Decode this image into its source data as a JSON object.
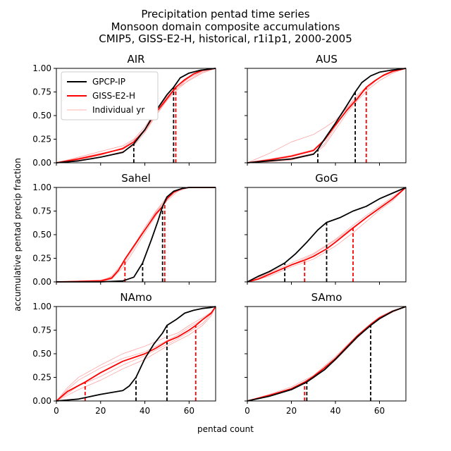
{
  "figure": {
    "title_lines": [
      "Precipitation pentad time series",
      "Monsoon domain composite accumulations",
      "CMIP5, GISS-E2-H, historical, r1i1p1, 2000-2005"
    ],
    "xlabel": "pentad count",
    "ylabel": "accumulative pentad precip fraction",
    "xticks": [
      0,
      20,
      40,
      60
    ],
    "xtick_labels": [
      "0",
      "20",
      "40",
      "60"
    ],
    "yticks": [
      0,
      0.25,
      0.5,
      0.75,
      1.0
    ],
    "ytick_labels": [
      "0.00",
      "0.25",
      "0.50",
      "0.75",
      "1.00"
    ],
    "legend": {
      "placement": "top-left of first panel",
      "entries": [
        "GPCP-IP",
        "GISS-E2-H",
        "Individual yr"
      ]
    },
    "colors": {
      "obs": "#000000",
      "model": "#ff0000",
      "individual": "#ff9999"
    }
  },
  "chart_data": [
    {
      "type": "line",
      "title": "AIR",
      "xlim": [
        0,
        72
      ],
      "ylim": [
        0,
        1
      ],
      "series": [
        {
          "name": "GPCP-IP",
          "x": [
            0,
            10,
            20,
            30,
            35,
            40,
            45,
            50,
            53,
            56,
            60,
            65,
            72
          ],
          "y": [
            0,
            0.02,
            0.06,
            0.11,
            0.2,
            0.35,
            0.55,
            0.72,
            0.8,
            0.9,
            0.95,
            0.98,
            1.0
          ]
        },
        {
          "name": "GISS-E2-H",
          "x": [
            0,
            10,
            20,
            30,
            35,
            40,
            45,
            50,
            54,
            58,
            62,
            66,
            72
          ],
          "y": [
            0,
            0.04,
            0.09,
            0.15,
            0.22,
            0.35,
            0.53,
            0.68,
            0.8,
            0.88,
            0.94,
            0.98,
            1.0
          ]
        }
      ],
      "individual": [
        {
          "x": [
            0,
            10,
            20,
            30,
            35,
            40,
            45,
            50,
            55,
            60,
            66,
            72
          ],
          "y": [
            0,
            0.06,
            0.12,
            0.18,
            0.25,
            0.38,
            0.55,
            0.7,
            0.82,
            0.9,
            0.97,
            1.0
          ]
        },
        {
          "x": [
            0,
            10,
            20,
            30,
            35,
            40,
            45,
            50,
            55,
            60,
            66,
            72
          ],
          "y": [
            0,
            0.02,
            0.06,
            0.12,
            0.18,
            0.32,
            0.5,
            0.66,
            0.78,
            0.88,
            0.96,
            1.0
          ]
        },
        {
          "x": [
            0,
            10,
            20,
            30,
            35,
            40,
            45,
            50,
            55,
            60,
            66,
            72
          ],
          "y": [
            0,
            0.05,
            0.1,
            0.14,
            0.22,
            0.36,
            0.54,
            0.7,
            0.8,
            0.9,
            0.97,
            1.0
          ]
        },
        {
          "x": [
            0,
            10,
            20,
            30,
            35,
            40,
            45,
            50,
            55,
            60,
            66,
            72
          ],
          "y": [
            0,
            0.03,
            0.08,
            0.16,
            0.24,
            0.33,
            0.5,
            0.67,
            0.8,
            0.87,
            0.95,
            1.0
          ]
        }
      ],
      "obs_vlines": [
        35,
        53
      ],
      "model_vlines": [
        54
      ]
    },
    {
      "type": "line",
      "title": "AUS",
      "xlim": [
        0,
        72
      ],
      "ylim": [
        0,
        1
      ],
      "series": [
        {
          "name": "GPCP-IP",
          "x": [
            0,
            10,
            20,
            30,
            32,
            35,
            40,
            45,
            49,
            52,
            56,
            60,
            65,
            72
          ],
          "y": [
            0,
            0.02,
            0.04,
            0.09,
            0.14,
            0.25,
            0.42,
            0.6,
            0.75,
            0.85,
            0.92,
            0.96,
            0.98,
            1.0
          ]
        },
        {
          "name": "GISS-E2-H",
          "x": [
            0,
            10,
            20,
            30,
            35,
            40,
            45,
            50,
            54,
            58,
            62,
            66,
            72
          ],
          "y": [
            0,
            0.03,
            0.07,
            0.13,
            0.24,
            0.4,
            0.55,
            0.68,
            0.8,
            0.87,
            0.93,
            0.97,
            1.0
          ]
        }
      ],
      "individual": [
        {
          "x": [
            0,
            10,
            20,
            30,
            35,
            40,
            45,
            50,
            55,
            60,
            66,
            72
          ],
          "y": [
            0,
            0.1,
            0.22,
            0.3,
            0.37,
            0.45,
            0.57,
            0.7,
            0.82,
            0.9,
            0.97,
            1.0
          ]
        },
        {
          "x": [
            0,
            10,
            20,
            30,
            35,
            40,
            45,
            50,
            55,
            60,
            66,
            72
          ],
          "y": [
            0,
            0.02,
            0.05,
            0.1,
            0.2,
            0.38,
            0.56,
            0.7,
            0.8,
            0.9,
            0.96,
            1.0
          ]
        },
        {
          "x": [
            0,
            10,
            20,
            30,
            35,
            40,
            45,
            50,
            55,
            60,
            66,
            72
          ],
          "y": [
            0,
            0.04,
            0.08,
            0.14,
            0.25,
            0.42,
            0.58,
            0.72,
            0.82,
            0.9,
            0.97,
            1.0
          ]
        },
        {
          "x": [
            0,
            10,
            20,
            30,
            35,
            40,
            45,
            50,
            55,
            60,
            66,
            72
          ],
          "y": [
            0,
            0.01,
            0.03,
            0.09,
            0.18,
            0.35,
            0.52,
            0.66,
            0.78,
            0.87,
            0.95,
            1.0
          ]
        }
      ],
      "obs_vlines": [
        32,
        49
      ],
      "model_vlines": [
        54
      ]
    },
    {
      "type": "line",
      "title": "Sahel",
      "xlim": [
        0,
        72
      ],
      "ylim": [
        0,
        1
      ],
      "series": [
        {
          "name": "GPCP-IP",
          "x": [
            0,
            20,
            30,
            35,
            39,
            43,
            46,
            48,
            50,
            53,
            57,
            60,
            72
          ],
          "y": [
            0,
            0,
            0.01,
            0.05,
            0.2,
            0.45,
            0.65,
            0.8,
            0.9,
            0.96,
            0.99,
            1.0,
            1.0
          ]
        },
        {
          "name": "GISS-E2-H",
          "x": [
            0,
            20,
            25,
            28,
            31,
            35,
            40,
            45,
            48,
            50,
            53,
            57,
            60,
            72
          ],
          "y": [
            0,
            0.01,
            0.04,
            0.12,
            0.24,
            0.38,
            0.55,
            0.72,
            0.8,
            0.88,
            0.95,
            0.99,
            1.0,
            1.0
          ]
        }
      ],
      "individual": [
        {
          "x": [
            0,
            20,
            25,
            30,
            35,
            40,
            45,
            50,
            55,
            60,
            72
          ],
          "y": [
            0,
            0.01,
            0.06,
            0.2,
            0.38,
            0.58,
            0.75,
            0.9,
            0.98,
            1.0,
            1.0
          ]
        },
        {
          "x": [
            0,
            20,
            25,
            30,
            35,
            40,
            45,
            50,
            55,
            60,
            72
          ],
          "y": [
            0,
            0.0,
            0.03,
            0.15,
            0.33,
            0.52,
            0.7,
            0.86,
            0.96,
            1.0,
            1.0
          ]
        },
        {
          "x": [
            0,
            20,
            25,
            30,
            35,
            40,
            45,
            50,
            55,
            60,
            72
          ],
          "y": [
            0,
            0.02,
            0.05,
            0.18,
            0.36,
            0.55,
            0.74,
            0.88,
            0.97,
            1.0,
            1.0
          ]
        }
      ],
      "obs_vlines": [
        39,
        48
      ],
      "model_vlines": [
        31,
        49
      ]
    },
    {
      "type": "line",
      "title": "GoG",
      "xlim": [
        0,
        72
      ],
      "ylim": [
        0,
        1
      ],
      "series": [
        {
          "name": "GPCP-IP",
          "x": [
            0,
            5,
            10,
            17,
            22,
            27,
            32,
            36,
            42,
            48,
            54,
            60,
            66,
            72
          ],
          "y": [
            0,
            0.06,
            0.11,
            0.2,
            0.3,
            0.42,
            0.55,
            0.63,
            0.68,
            0.75,
            0.8,
            0.88,
            0.94,
            1.0
          ]
        },
        {
          "name": "GISS-E2-H",
          "x": [
            0,
            5,
            10,
            15,
            20,
            26,
            30,
            36,
            40,
            48,
            54,
            60,
            66,
            72
          ],
          "y": [
            0,
            0.03,
            0.08,
            0.13,
            0.18,
            0.23,
            0.27,
            0.35,
            0.42,
            0.57,
            0.68,
            0.78,
            0.88,
            1.0
          ]
        }
      ],
      "individual": [
        {
          "x": [
            0,
            10,
            20,
            30,
            40,
            48,
            55,
            60,
            66,
            72
          ],
          "y": [
            0,
            0.1,
            0.2,
            0.3,
            0.45,
            0.6,
            0.72,
            0.8,
            0.9,
            1.0
          ]
        },
        {
          "x": [
            0,
            10,
            20,
            30,
            40,
            48,
            55,
            60,
            66,
            72
          ],
          "y": [
            0,
            0.06,
            0.16,
            0.24,
            0.38,
            0.52,
            0.66,
            0.76,
            0.86,
            1.0
          ]
        },
        {
          "x": [
            0,
            10,
            20,
            30,
            40,
            48,
            55,
            60,
            66,
            72
          ],
          "y": [
            0,
            0.09,
            0.18,
            0.29,
            0.44,
            0.58,
            0.7,
            0.78,
            0.88,
            1.0
          ]
        }
      ],
      "obs_vlines": [
        17,
        36
      ],
      "model_vlines": [
        26,
        48
      ]
    },
    {
      "type": "line",
      "title": "NAmo",
      "xlim": [
        0,
        72
      ],
      "ylim": [
        0,
        1
      ],
      "series": [
        {
          "name": "GPCP-IP",
          "x": [
            0,
            10,
            20,
            30,
            33,
            36,
            40,
            44,
            48,
            50,
            54,
            58,
            62,
            66,
            70,
            72
          ],
          "y": [
            0,
            0.02,
            0.07,
            0.11,
            0.16,
            0.25,
            0.45,
            0.6,
            0.72,
            0.8,
            0.86,
            0.93,
            0.96,
            0.98,
            0.99,
            1.0
          ]
        },
        {
          "name": "GISS-E2-H",
          "x": [
            0,
            5,
            13,
            20,
            30,
            40,
            45,
            50,
            55,
            60,
            63,
            66,
            70,
            72
          ],
          "y": [
            0,
            0.1,
            0.2,
            0.3,
            0.42,
            0.5,
            0.56,
            0.63,
            0.68,
            0.75,
            0.8,
            0.86,
            0.93,
            1.0
          ]
        }
      ],
      "individual": [
        {
          "x": [
            0,
            5,
            10,
            20,
            30,
            40,
            50,
            55,
            60,
            66,
            70,
            72
          ],
          "y": [
            0,
            0.14,
            0.25,
            0.38,
            0.5,
            0.58,
            0.68,
            0.72,
            0.8,
            0.88,
            0.94,
            1.0
          ]
        },
        {
          "x": [
            0,
            5,
            10,
            20,
            30,
            40,
            50,
            55,
            60,
            66,
            70,
            72
          ],
          "y": [
            0,
            0.06,
            0.12,
            0.22,
            0.34,
            0.44,
            0.58,
            0.64,
            0.7,
            0.8,
            0.9,
            1.0
          ]
        },
        {
          "x": [
            0,
            5,
            10,
            20,
            30,
            40,
            50,
            55,
            60,
            66,
            70,
            72
          ],
          "y": [
            0,
            0.12,
            0.22,
            0.35,
            0.45,
            0.52,
            0.64,
            0.7,
            0.78,
            0.86,
            0.94,
            1.0
          ]
        },
        {
          "x": [
            0,
            5,
            10,
            20,
            30,
            40,
            50,
            55,
            60,
            66,
            70,
            72
          ],
          "y": [
            0,
            0.08,
            0.16,
            0.26,
            0.38,
            0.48,
            0.6,
            0.66,
            0.73,
            0.82,
            0.92,
            1.0
          ]
        }
      ],
      "obs_vlines": [
        36,
        50
      ],
      "model_vlines": [
        13,
        63
      ]
    },
    {
      "type": "line",
      "title": "SAmo",
      "xlim": [
        0,
        72
      ],
      "ylim": [
        0,
        1
      ],
      "series": [
        {
          "name": "GPCP-IP",
          "x": [
            0,
            10,
            20,
            27,
            30,
            35,
            40,
            45,
            50,
            56,
            60,
            66,
            72
          ],
          "y": [
            0,
            0.05,
            0.12,
            0.2,
            0.25,
            0.33,
            0.44,
            0.56,
            0.68,
            0.8,
            0.87,
            0.95,
            1.0
          ]
        },
        {
          "name": "GISS-E2-H",
          "x": [
            0,
            10,
            20,
            26,
            30,
            35,
            40,
            45,
            50,
            56,
            60,
            66,
            72
          ],
          "y": [
            0,
            0.06,
            0.13,
            0.2,
            0.26,
            0.35,
            0.45,
            0.57,
            0.69,
            0.81,
            0.88,
            0.95,
            1.0
          ]
        }
      ],
      "individual": [
        {
          "x": [
            0,
            10,
            20,
            30,
            40,
            50,
            56,
            60,
            66,
            72
          ],
          "y": [
            0,
            0.07,
            0.15,
            0.27,
            0.47,
            0.7,
            0.82,
            0.89,
            0.96,
            1.0
          ]
        },
        {
          "x": [
            0,
            10,
            20,
            30,
            40,
            50,
            56,
            60,
            66,
            72
          ],
          "y": [
            0,
            0.05,
            0.12,
            0.24,
            0.43,
            0.67,
            0.8,
            0.87,
            0.94,
            1.0
          ]
        }
      ],
      "obs_vlines": [
        27,
        56
      ],
      "model_vlines": [
        26
      ]
    }
  ]
}
